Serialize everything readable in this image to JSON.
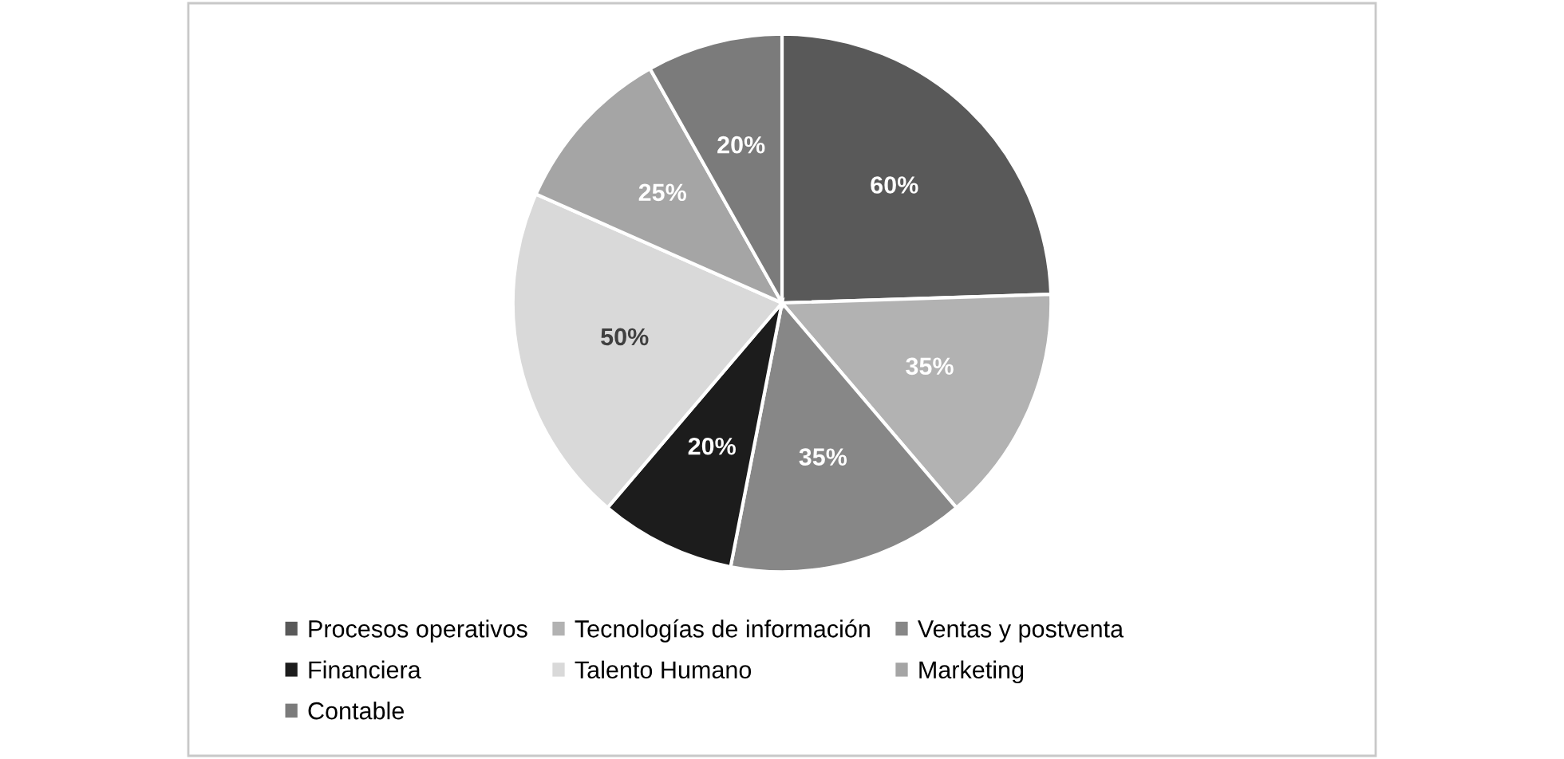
{
  "chart_data": {
    "type": "pie",
    "categories": [
      "Procesos operativos",
      "Tecnologías de información",
      "Ventas y postventa",
      "Financiera",
      "Talento Humano",
      "Marketing",
      "Contable"
    ],
    "values": [
      60,
      35,
      35,
      20,
      50,
      25,
      20
    ],
    "colors": [
      "#595959",
      "#b2b2b2",
      "#878787",
      "#1c1c1c",
      "#d9d9d9",
      "#a5a5a5",
      "#7b7b7b"
    ],
    "value_labels": [
      "60%",
      "35%",
      "35%",
      "20%",
      "50%",
      "25%",
      "20%"
    ],
    "legend": "bottom"
  }
}
